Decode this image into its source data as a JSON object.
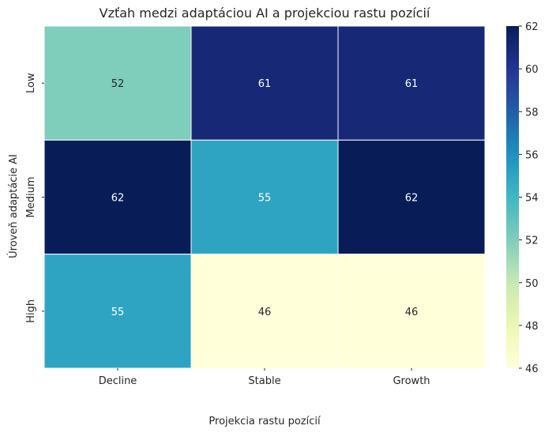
{
  "chart_data": {
    "type": "heatmap",
    "title": "Vzťah medzi adaptáciou AI a projekciou rastu pozícií",
    "xlabel": "Projekcia rastu pozícií",
    "ylabel": "Úroveň adaptácie AI",
    "x_categories": [
      "Decline",
      "Stable",
      "Growth"
    ],
    "y_categories": [
      "Low",
      "Medium",
      "High"
    ],
    "values": [
      [
        52,
        61,
        61
      ],
      [
        62,
        55,
        62
      ],
      [
        55,
        46,
        46
      ]
    ],
    "colorbar": {
      "min": 46,
      "max": 62,
      "ticks": [
        46,
        48,
        50,
        52,
        54,
        56,
        58,
        60,
        62
      ],
      "colormap": "YlGnBu"
    },
    "annotation_colors": {
      "dark_text": "#262626",
      "light_text": "#ffffff"
    }
  }
}
